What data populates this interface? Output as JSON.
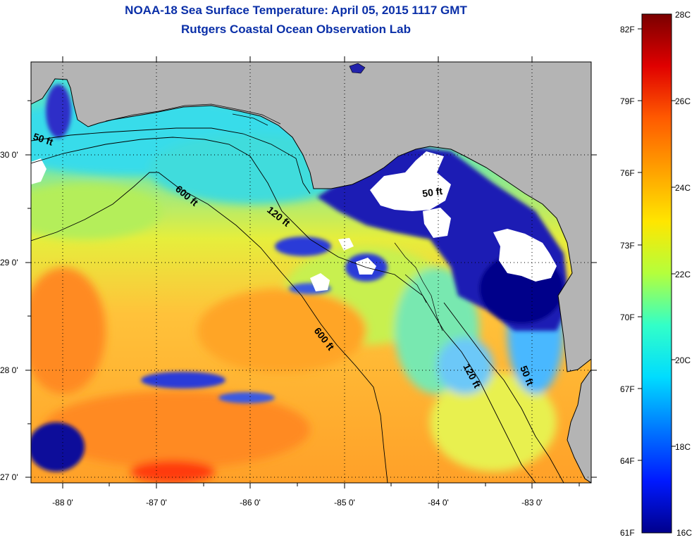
{
  "title": {
    "line1": "NOAA-18 Sea Surface Temperature:  April 05, 2015 1117 GMT",
    "line2": "Rutgers Coastal Ocean Observation Lab"
  },
  "map": {
    "lat_labels": [
      "30 0'",
      "29 0'",
      "28 0'",
      "27 0'"
    ],
    "lon_labels": [
      "-88 0'",
      "-87 0'",
      "-86 0'",
      "-85 0'",
      "-84 0'",
      "-83 0'"
    ],
    "contours": {
      "c600_a": "600 ft",
      "c600_b": "600 ft",
      "c120_a": "120 ft",
      "c120_b": "120 ft",
      "c50_a": "50 ft",
      "c50_b": "50 ft",
      "c50_c": "50 ft"
    }
  },
  "colorbar": {
    "fahrenheit_labels": [
      "82F",
      "79F",
      "76F",
      "73F",
      "70F",
      "67F",
      "64F",
      "61F"
    ],
    "celsius_labels": [
      "28C",
      "26C",
      "24C",
      "22C",
      "20C",
      "18C",
      "16C"
    ],
    "stops": [
      "#7a0000",
      "#e00000",
      "#ff5a00",
      "#ffa000",
      "#ffe600",
      "#b4ff3c",
      "#32ffc8",
      "#00dcff",
      "#0078ff",
      "#0019ff",
      "#00008c"
    ]
  },
  "colors": {
    "title": "#0a2fa8",
    "land": "#b4b4b4",
    "cloud": "#ffffff",
    "cold": "#0a0a8c",
    "warm": "#ff8c1e",
    "hot": "#ff3200",
    "yellow": "#f0f03c",
    "cyan": "#28e6e6"
  }
}
